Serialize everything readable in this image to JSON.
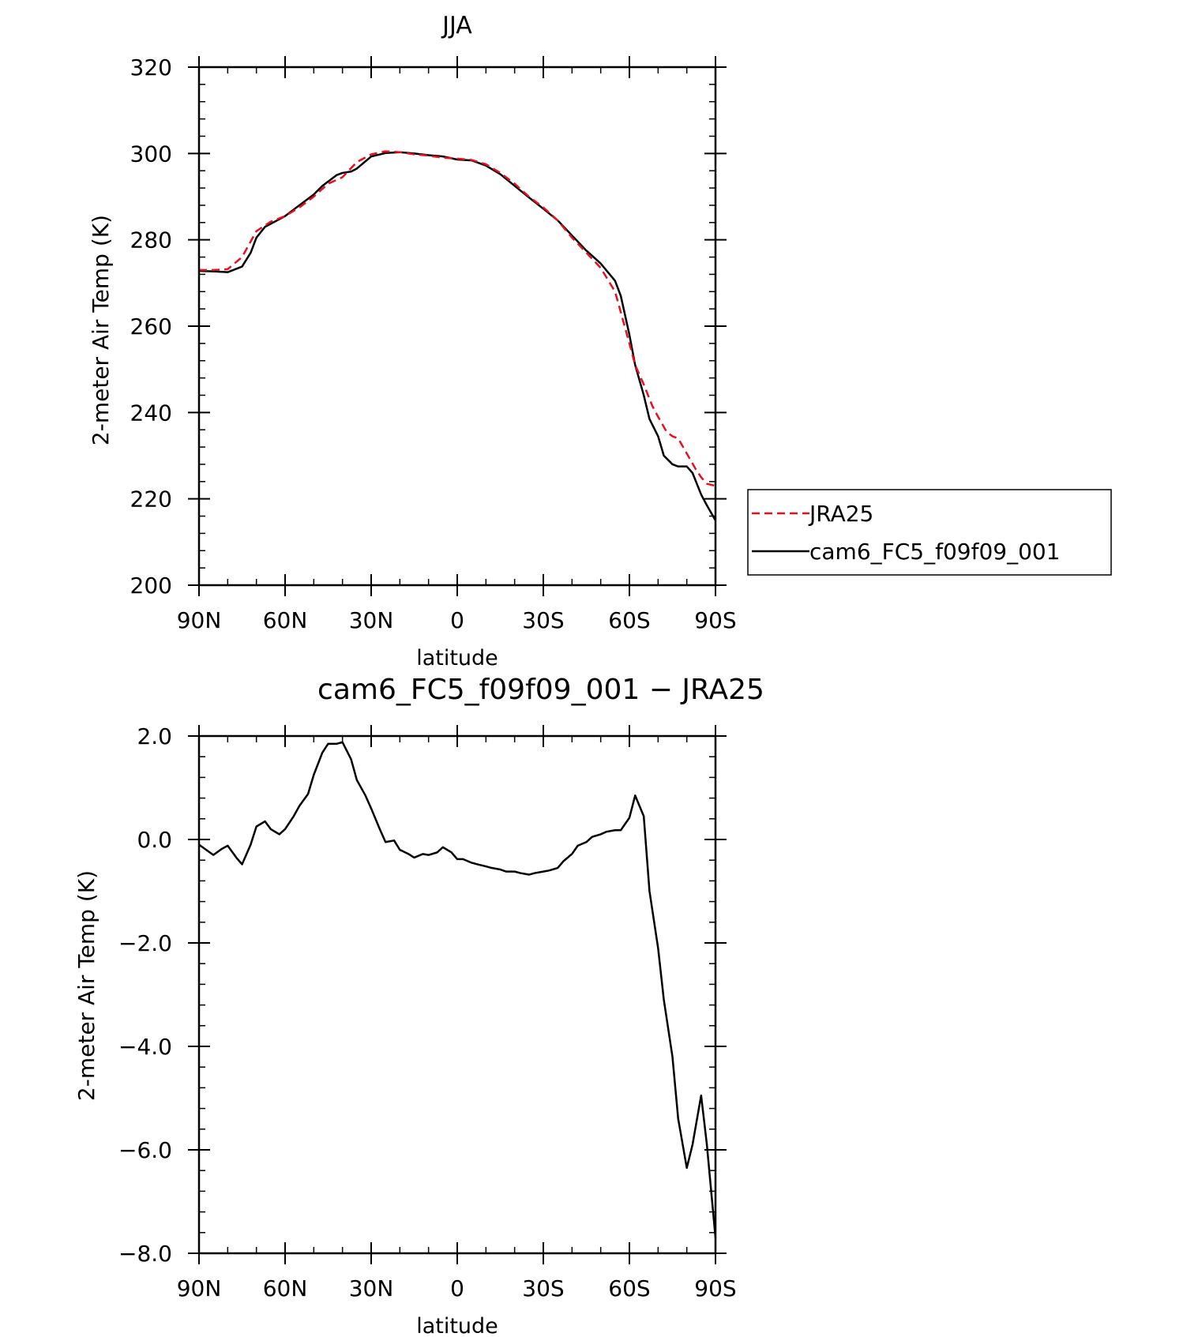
{
  "chart_data": [
    {
      "type": "line",
      "title": "JJA",
      "xlabel": "latitude",
      "ylabel": "2-meter Air Temp (K)",
      "xlim": [
        90,
        -90
      ],
      "ylim": [
        200,
        320
      ],
      "x_ticks": [
        90,
        60,
        30,
        0,
        -30,
        -60,
        -90
      ],
      "x_tick_labels": [
        "90N",
        "60N",
        "30N",
        "0",
        "30S",
        "60S",
        "90S"
      ],
      "y_ticks": [
        200,
        220,
        240,
        260,
        280,
        300,
        320
      ],
      "y_tick_labels": [
        "200",
        "220",
        "240",
        "260",
        "280",
        "300",
        "320"
      ],
      "legend_position": "right",
      "series": [
        {
          "name": "JRA25",
          "color": "#e8101e",
          "dash": "dashed",
          "x": [
            90,
            85,
            80,
            75,
            70,
            65,
            60,
            55,
            50,
            45,
            40,
            35,
            30,
            25,
            20,
            15,
            10,
            5,
            0,
            -5,
            -10,
            -15,
            -20,
            -25,
            -30,
            -35,
            -40,
            -45,
            -50,
            -55,
            -60,
            -62,
            -65,
            -68,
            -70,
            -73,
            -75,
            -77,
            -80,
            -83,
            -85,
            -87,
            -90
          ],
          "y": [
            273,
            273,
            273.2,
            276,
            282,
            284.2,
            285.5,
            287.5,
            290,
            293,
            294.5,
            298,
            299.8,
            300.5,
            300.3,
            299.8,
            299.5,
            299,
            298.8,
            298.5,
            297.5,
            295.5,
            293,
            290,
            287.5,
            284.5,
            280.5,
            277,
            273.5,
            268,
            256,
            251,
            246.5,
            241.5,
            239,
            235.5,
            234.5,
            234,
            230.5,
            227,
            225,
            223.5,
            223
          ]
        },
        {
          "name": "cam6_FC5_f09f09_001",
          "color": "#000000",
          "dash": "solid",
          "x": [
            90,
            85,
            80,
            75,
            72,
            70,
            67,
            65,
            60,
            57,
            55,
            50,
            47,
            45,
            42,
            40,
            37,
            35,
            30,
            25,
            20,
            15,
            10,
            5,
            0,
            -5,
            -10,
            -15,
            -20,
            -25,
            -30,
            -35,
            -40,
            -45,
            -50,
            -55,
            -57,
            -60,
            -62,
            -65,
            -67,
            -70,
            -72,
            -75,
            -77,
            -80,
            -82,
            -85,
            -87,
            -90
          ],
          "y": [
            272.8,
            272.7,
            272.5,
            273.8,
            277,
            280.5,
            283,
            283.7,
            285.5,
            287,
            288,
            290.5,
            292.5,
            293.5,
            295,
            295.5,
            295.8,
            296.5,
            299.3,
            300.1,
            300.3,
            300,
            299.6,
            299.3,
            298.6,
            298.4,
            297.2,
            295.2,
            292.5,
            289.8,
            287.2,
            284.5,
            281,
            277.5,
            274.5,
            270.5,
            267,
            258,
            251,
            244,
            238.5,
            234.5,
            230,
            228,
            227.5,
            227.5,
            226,
            221,
            218.5,
            215
          ]
        }
      ]
    },
    {
      "type": "line",
      "title": "cam6_FC5_f09f09_001 − JRA25",
      "xlabel": "latitude",
      "ylabel": "2-meter Air Temp (K)",
      "xlim": [
        90,
        -90
      ],
      "ylim": [
        -8,
        2
      ],
      "x_ticks": [
        90,
        60,
        30,
        0,
        -30,
        -60,
        -90
      ],
      "x_tick_labels": [
        "90N",
        "60N",
        "30N",
        "0",
        "30S",
        "60S",
        "90S"
      ],
      "y_ticks": [
        -8,
        -6,
        -4,
        -2,
        0,
        2
      ],
      "y_tick_labels": [
        "−8.0",
        "−6.0",
        "−4.0",
        "−2.0",
        "0.0",
        "2.0"
      ],
      "series": [
        {
          "color": "#000000",
          "dash": "solid",
          "x": [
            90,
            85,
            82,
            80,
            77,
            75,
            72,
            70,
            67,
            65,
            62,
            60,
            57,
            55,
            52,
            50,
            47,
            45,
            42,
            40,
            37,
            35,
            32,
            30,
            27,
            25,
            22,
            20,
            17,
            15,
            12,
            10,
            7,
            5,
            2,
            0,
            -2,
            -5,
            -7,
            -10,
            -12,
            -15,
            -17,
            -20,
            -22,
            -25,
            -27,
            -30,
            -32,
            -35,
            -37,
            -40,
            -42,
            -45,
            -47,
            -50,
            -52,
            -55,
            -57,
            -60,
            -62,
            -65,
            -67,
            -70,
            -72,
            -75,
            -77,
            -80,
            -82,
            -85,
            -87,
            -90
          ],
          "y": [
            -0.1,
            -0.3,
            -0.18,
            -0.12,
            -0.35,
            -0.48,
            -0.1,
            0.25,
            0.35,
            0.2,
            0.1,
            0.2,
            0.45,
            0.65,
            0.88,
            1.25,
            1.68,
            1.85,
            1.85,
            1.88,
            1.55,
            1.15,
            0.85,
            0.6,
            0.2,
            -0.05,
            -0.02,
            -0.2,
            -0.28,
            -0.35,
            -0.28,
            -0.3,
            -0.25,
            -0.15,
            -0.25,
            -0.38,
            -0.38,
            -0.45,
            -0.48,
            -0.52,
            -0.55,
            -0.58,
            -0.62,
            -0.62,
            -0.65,
            -0.68,
            -0.65,
            -0.62,
            -0.6,
            -0.55,
            -0.42,
            -0.28,
            -0.12,
            -0.05,
            0.05,
            0.1,
            0.15,
            0.18,
            0.18,
            0.42,
            0.85,
            0.45,
            -1.0,
            -2.1,
            -3.1,
            -4.2,
            -5.4,
            -6.35,
            -5.9,
            -4.95,
            -5.9,
            -7.7
          ]
        }
      ]
    }
  ]
}
